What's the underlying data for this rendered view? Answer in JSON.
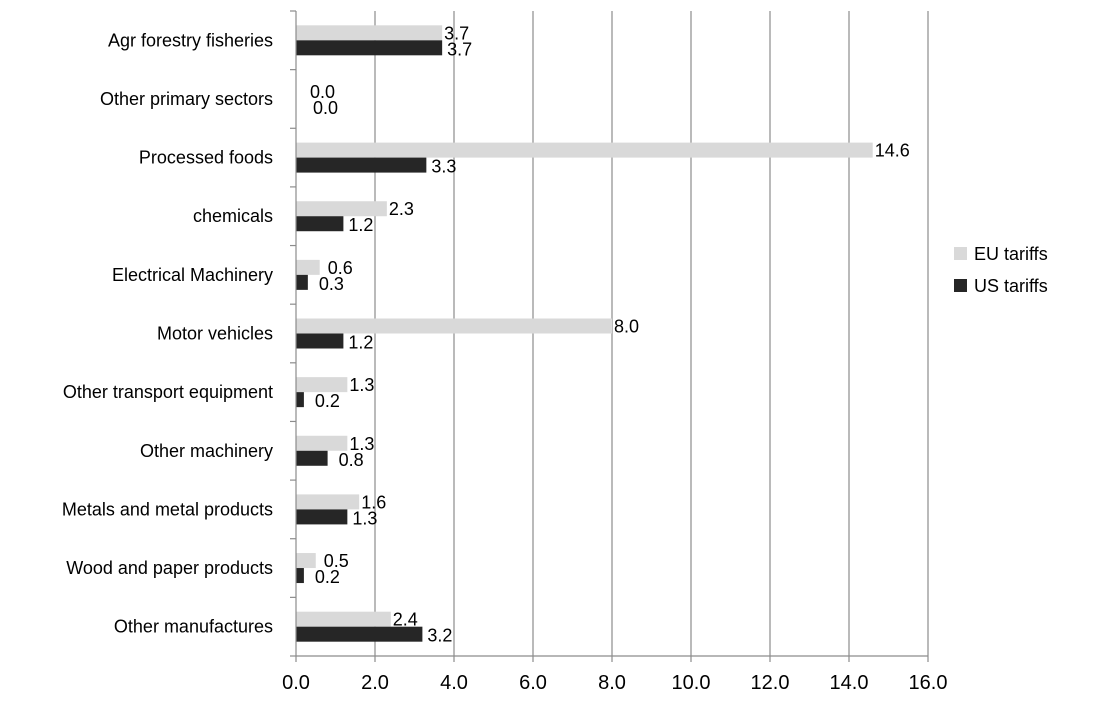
{
  "chart_data": {
    "type": "bar",
    "orientation": "horizontal",
    "categories": [
      "Agr forestry fisheries",
      "Other primary sectors",
      "Processed foods",
      "chemicals",
      "Electrical Machinery",
      "Motor vehicles",
      "Other transport equipment",
      "Other machinery",
      "Metals and metal products",
      "Wood and paper products",
      "Other manufactures"
    ],
    "series": [
      {
        "name": "EU tariffs",
        "color": "#d9d9d9",
        "values": [
          3.7,
          0.0,
          14.6,
          2.3,
          0.6,
          8.0,
          1.3,
          1.3,
          1.6,
          0.5,
          2.4
        ]
      },
      {
        "name": "US tariffs",
        "color": "#262626",
        "values": [
          3.7,
          0.0,
          3.3,
          1.2,
          0.3,
          1.2,
          0.2,
          0.8,
          1.3,
          0.2,
          3.2
        ]
      }
    ],
    "data_labels": {
      "EU tariffs": [
        "3.7",
        "0.0",
        "14.6",
        "2.3",
        "0.6",
        "8.0",
        "1.3",
        "1.3",
        "1.6",
        "0.5",
        "2.4"
      ],
      "US tariffs": [
        "3.7",
        "0.0",
        "3.3",
        "1.2",
        "0.3",
        "1.2",
        "0.2",
        "0.8",
        "1.3",
        "0.2",
        "3.2"
      ]
    },
    "x_ticks": [
      "0.0",
      "2.0",
      "4.0",
      "6.0",
      "8.0",
      "10.0",
      "12.0",
      "14.0",
      "16.0"
    ],
    "xlim": [
      0,
      16
    ],
    "grid": "vertical",
    "legend_position": "right",
    "title": "",
    "xlabel": "",
    "ylabel": ""
  }
}
